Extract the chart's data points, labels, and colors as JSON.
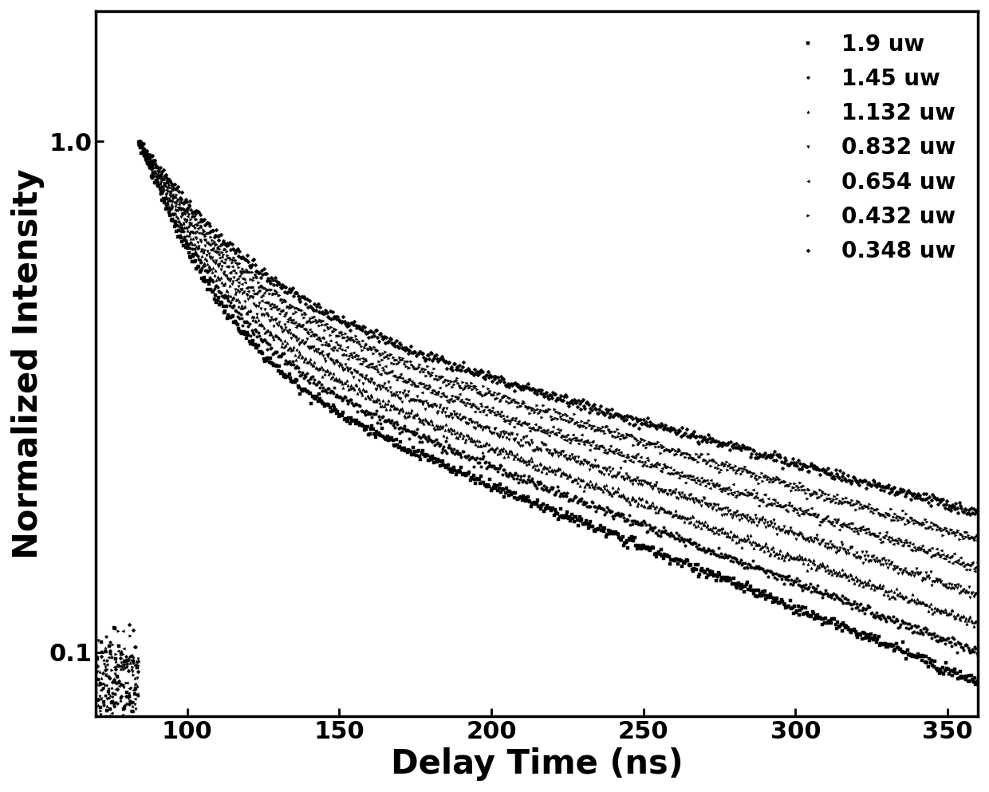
{
  "xlabel": "Delay Time (ns)",
  "ylabel": "Normalized Intensity",
  "xlim": [
    70,
    360
  ],
  "ylim_log": [
    0.075,
    1.8
  ],
  "x_ticks": [
    100,
    150,
    200,
    250,
    300,
    350
  ],
  "y_ticks_log": [
    0.1,
    1
  ],
  "background_color": "#ffffff",
  "series": [
    {
      "label": "1.9 uw",
      "marker": "s",
      "k_fast": 0.055,
      "k_slow": 0.0055,
      "A_fast": 0.6,
      "A_slow": 0.4,
      "t0": 84
    },
    {
      "label": "1.45 uw",
      "marker": "o",
      "k_fast": 0.052,
      "k_slow": 0.0052,
      "A_fast": 0.58,
      "A_slow": 0.42,
      "t0": 84
    },
    {
      "label": "1.132 uw",
      "marker": "^",
      "k_fast": 0.049,
      "k_slow": 0.0049,
      "A_fast": 0.56,
      "A_slow": 0.44,
      "t0": 84
    },
    {
      "label": "0.832 uw",
      "marker": "v",
      "k_fast": 0.046,
      "k_slow": 0.0046,
      "A_fast": 0.54,
      "A_slow": 0.46,
      "t0": 84
    },
    {
      "label": "0.654 uw",
      "marker": "<",
      "k_fast": 0.043,
      "k_slow": 0.0043,
      "A_fast": 0.52,
      "A_slow": 0.48,
      "t0": 84
    },
    {
      "label": "0.432 uw",
      "marker": ">",
      "k_fast": 0.04,
      "k_slow": 0.004,
      "A_fast": 0.5,
      "A_slow": 0.5,
      "t0": 84
    },
    {
      "label": "0.348 uw",
      "marker": "D",
      "k_fast": 0.037,
      "k_slow": 0.0037,
      "A_fast": 0.48,
      "A_slow": 0.52,
      "t0": 84
    }
  ],
  "line_color": "#000000",
  "marker_color": "#000000",
  "markersize": 2.5,
  "linewidth": 0.0,
  "legend_fontsize": 20,
  "axis_label_fontsize": 30,
  "tick_fontsize": 22,
  "legend_loc": "upper right",
  "n_points": 800,
  "noise_std": 0.012
}
